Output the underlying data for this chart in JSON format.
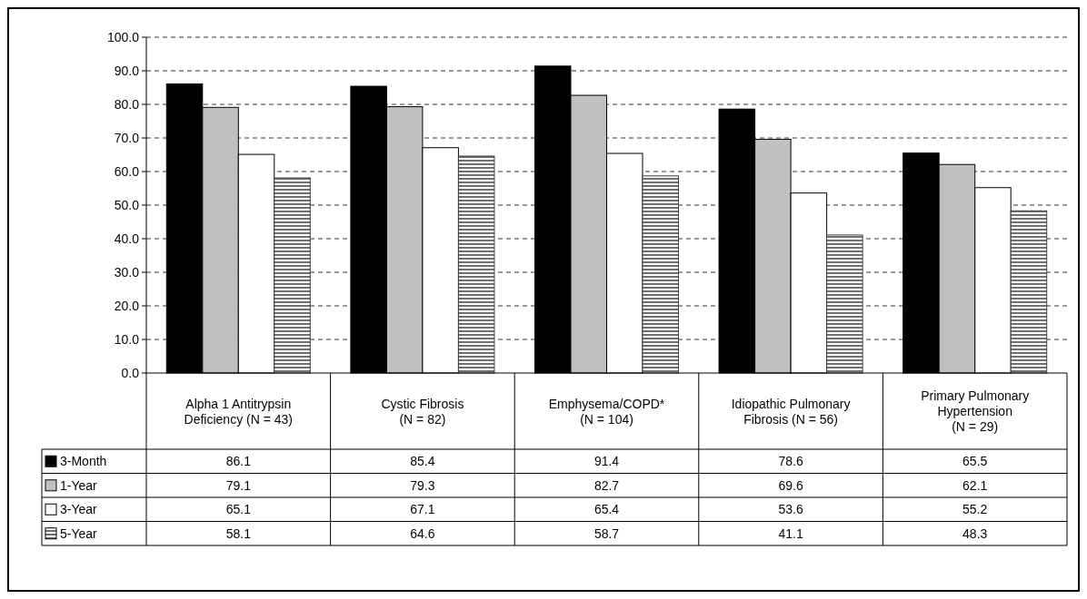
{
  "chart_data": {
    "type": "bar",
    "categories": [
      "Alpha 1 Antitrypsin Deficiency (N = 43)",
      "Cystic Fibrosis (N = 82)",
      "Emphysema/COPD* (N = 104)",
      "Idiopathic Pulmonary Fibrosis (N = 56)",
      "Primary Pulmonary Hypertension (N = 29)"
    ],
    "series": [
      {
        "name": "3-Month",
        "color": "#000000",
        "values": [
          86.1,
          85.4,
          91.4,
          78.6,
          65.5
        ]
      },
      {
        "name": "1-Year",
        "color": "#c0c0c0",
        "values": [
          79.1,
          79.3,
          82.7,
          69.6,
          62.1
        ]
      },
      {
        "name": "3-Year",
        "color": "#ffffff",
        "values": [
          65.1,
          67.1,
          65.4,
          53.6,
          55.2
        ]
      },
      {
        "name": "5-Year",
        "color": "#404040",
        "values": [
          58.1,
          64.6,
          58.7,
          41.1,
          48.3
        ]
      }
    ],
    "ylim": [
      0,
      100
    ],
    "yticks": [
      {
        "value": 0,
        "label": "0.0"
      },
      {
        "value": 10,
        "label": "10.0"
      },
      {
        "value": 20,
        "label": "20.0"
      },
      {
        "value": 30,
        "label": "30.0"
      },
      {
        "value": 40,
        "label": "40.0"
      },
      {
        "value": 50,
        "label": "50.0"
      },
      {
        "value": 60,
        "label": "60.0"
      },
      {
        "value": 70,
        "label": "70.0"
      },
      {
        "value": 80,
        "label": "80.0"
      },
      {
        "value": 90,
        "label": "90.0"
      },
      {
        "value": 100,
        "label": "100.0"
      }
    ],
    "grid": "y",
    "legend": "bottom",
    "data_labels": true
  }
}
